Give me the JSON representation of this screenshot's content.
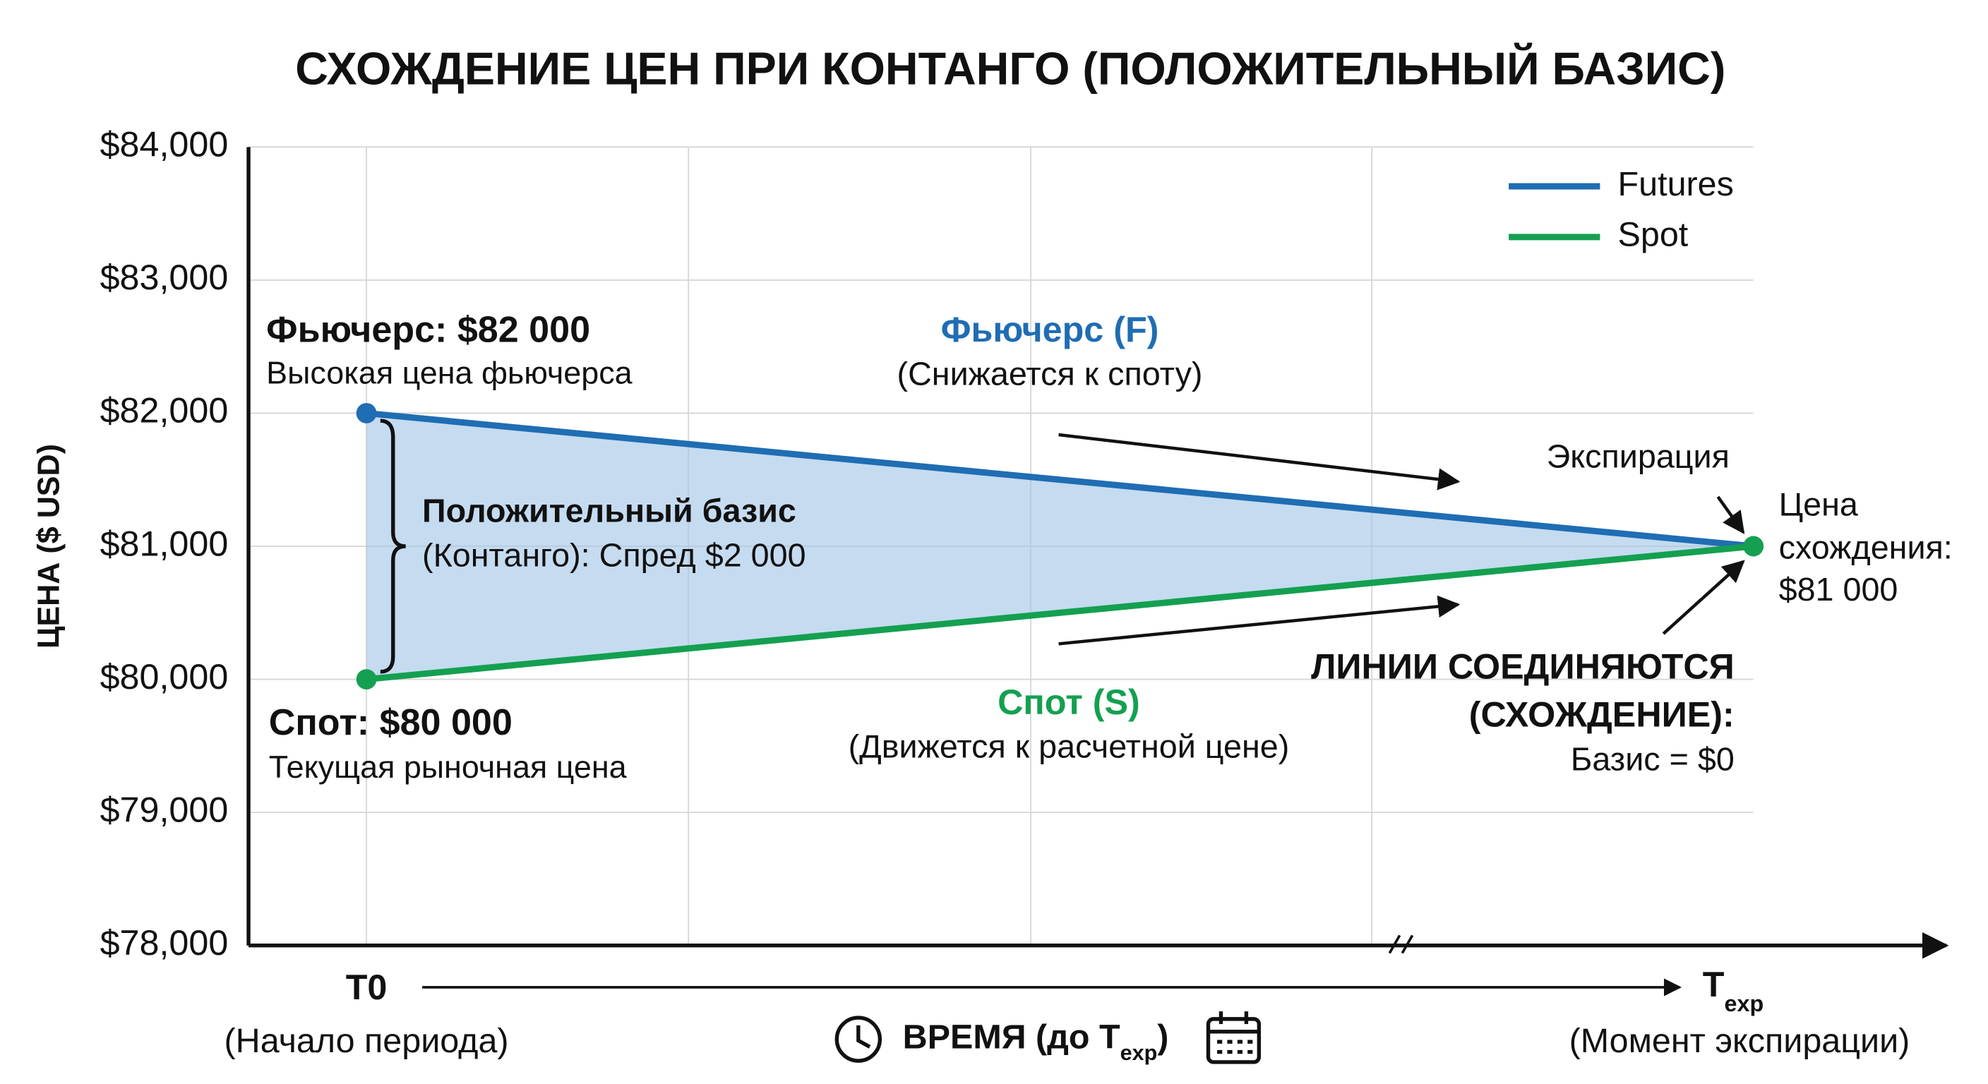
{
  "chart_data": {
    "type": "line",
    "title": "СХОЖДЕНИЕ ЦЕН ПРИ КОНТАНГО (ПОЛОЖИТЕЛЬНЫЙ БАЗИС)",
    "y_label": "ЦЕНА ($ USD)",
    "x_label": {
      "text": "ВРЕМЯ (до T",
      "sub": "exp",
      "close": ")"
    },
    "categories": [
      {
        "label": "T0",
        "note": "(Начало периода)"
      },
      {
        "label": "T",
        "sub": "exp",
        "note": "(Момент экспирации)"
      }
    ],
    "series": [
      {
        "name": "Futures",
        "color": "#1f6db3",
        "values": [
          82000,
          81000
        ]
      },
      {
        "name": "Spot",
        "color": "#14a050",
        "values": [
          80000,
          81000
        ]
      }
    ],
    "ylim": [
      78000,
      84000
    ],
    "yticks": [
      {
        "value": 78000,
        "label": "$78,000"
      },
      {
        "value": 79000,
        "label": "$79,000"
      },
      {
        "value": 80000,
        "label": "$80,000"
      },
      {
        "value": 81000,
        "label": "$81,000"
      },
      {
        "value": 82000,
        "label": "$82,000"
      },
      {
        "value": 83000,
        "label": "$83,000"
      },
      {
        "value": 84000,
        "label": "$84,000"
      }
    ],
    "grid": true,
    "legend": "upper right",
    "annotations": {
      "futures_start": [
        "Фьючерс: $82 000",
        "Высокая цена фьючерса"
      ],
      "spot_start": [
        "Спот: $80 000",
        "Текущая рыночная цена"
      ],
      "basis": [
        "Положительный базис",
        "(Контанго): Спред $2 000"
      ],
      "futures_mid": [
        "Фьючерс (F)",
        "(Снижается к споту)"
      ],
      "spot_mid": [
        "Спот (S)",
        "(Движется к расчетной цене)"
      ],
      "expiration": "Экспирация",
      "convergence": [
        "Цена",
        "схождения:",
        "$81 000"
      ],
      "lines_join": [
        "ЛИНИИ СОЕДИНЯЮТСЯ",
        "(СХОЖДЕНИЕ):",
        "Базис = $0"
      ]
    }
  }
}
